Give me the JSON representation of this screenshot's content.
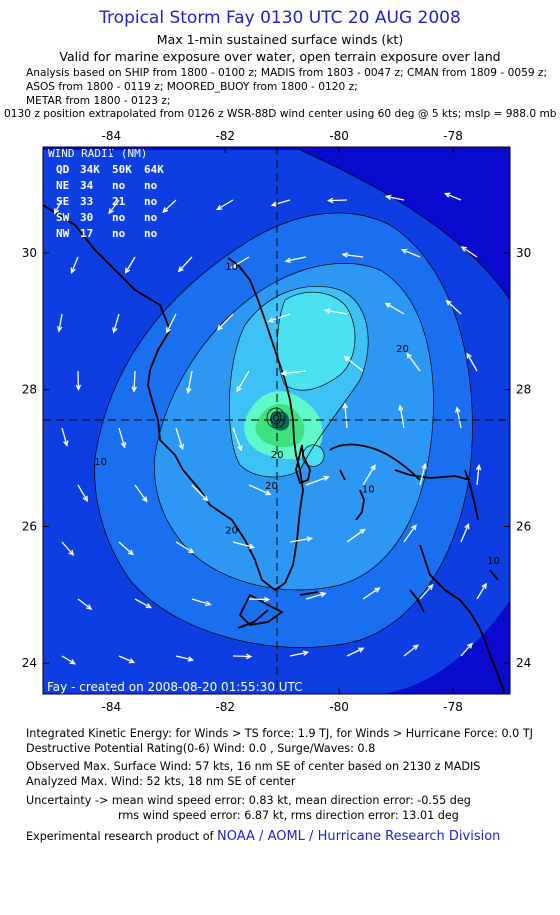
{
  "header": {
    "title": "Tropical Storm Fay 0130 UTC 20 AUG 2008",
    "subtitle": "Max 1-min sustained surface winds (kt)",
    "valid_for": "Valid for marine exposure over water, open terrain exposure over land",
    "analysis_lines": [
      "Analysis based on  SHIP from 1800 - 0100 z;  MADIS from 1803 - 0047 z;  CMAN from 1809 - 0059 z;",
      "ASOS from 1800 - 0119 z;  MOORED_BUOY from 1800 - 0120 z;",
      "METAR from 1800 - 0123 z;"
    ],
    "position_line": "0130 z position extrapolated from 0126 z WSR-88D wind center using 60 deg @ 5 kts; mslp = 988.0 mb"
  },
  "chart_data": {
    "type": "contour",
    "x_ticks": [
      "-84",
      "-82",
      "-80",
      "-78"
    ],
    "y_ticks": [
      "24",
      "26",
      "28",
      "30"
    ],
    "xlim": [
      -85.2,
      -77.0
    ],
    "ylim": [
      23.55,
      31.55
    ],
    "x_tick_values": [
      -84,
      -82,
      -80,
      -78
    ],
    "y_tick_values": [
      24,
      26,
      28,
      30
    ],
    "center": {
      "lon": -80.7,
      "lat": 27.55
    },
    "contour_labels": [
      {
        "text": "10",
        "lon": -82.0,
        "lat": 29.75
      },
      {
        "text": "20",
        "lon": -79.0,
        "lat": 28.55
      },
      {
        "text": "20",
        "lon": -81.2,
        "lat": 27.0
      },
      {
        "text": "20",
        "lon": -81.3,
        "lat": 26.55
      },
      {
        "text": "20",
        "lon": -82.0,
        "lat": 25.9
      },
      {
        "text": "10",
        "lon": -84.3,
        "lat": 26.9
      },
      {
        "text": "10",
        "lon": -79.6,
        "lat": 26.5
      },
      {
        "text": "10",
        "lon": -77.4,
        "lat": 25.45
      }
    ],
    "wind_radii": {
      "heading": "WIND RADII (NM)",
      "columns": [
        "QD",
        "34K",
        "50K",
        "64K"
      ],
      "rows": [
        [
          "NE",
          "34",
          "no",
          "no"
        ],
        [
          "SE",
          "33",
          "21",
          "no"
        ],
        [
          "SW",
          "30",
          "no",
          "no"
        ],
        [
          "NW",
          "17",
          "no",
          "no"
        ]
      ]
    },
    "credit": "Fay - created on 2008-08-20 01:55:30 UTC",
    "colors": {
      "level0": "#0a0acf",
      "level1": "#0d3ee2",
      "level2": "#1a6ff0",
      "level3": "#2c98f4",
      "level4": "#3ec2f6",
      "level5": "#4ae2f0",
      "level6": "#5ff8c8",
      "level7": "#3fe07e",
      "level8": "#0a6a5a",
      "coast": "#000000",
      "arrow": "#ffffff",
      "title": "#1f1fd0"
    }
  },
  "footer": {
    "ike": "Integrated Kinetic Energy:  for Winds > TS force: 1.9 TJ,  for Winds > Hurricane Force: 0.0 TJ",
    "dpr": "Destructive Potential Rating(0-6)   Wind: 0.0 , Surge/Waves: 0.8",
    "observed": "Observed Max. Surface Wind: 57 kts, 16 nm SE of center based on 2130 z MADIS",
    "analyzed": "Analyzed Max. Wind: 52 kts, 18 nm SE of center",
    "uncertainty1": "Uncertainty -> mean wind speed error: 0.83 kt,   mean direction error:  -0.55 deg",
    "uncertainty2": "rms wind speed error: 6.87 kt,   rms direction error: 13.01 deg",
    "product_prefix": "Experimental research product of ",
    "product_org": "NOAA / AOML / Hurricane Research Division"
  }
}
